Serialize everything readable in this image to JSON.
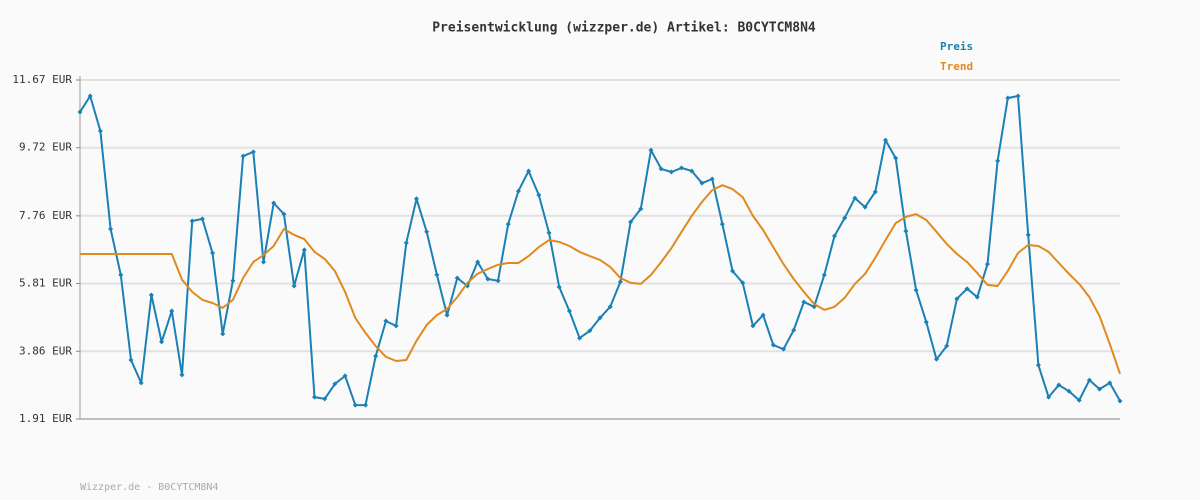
{
  "chart_data": {
    "type": "line",
    "title": "Preisentwicklung (wizzper.de) Artikel: B0CYTCM8N4",
    "footer": "Wizzper.de - B0CYTCM8N4",
    "ylim": [
      1.91,
      11.67
    ],
    "yticks": [
      {
        "value": 1.91,
        "label": "1.91 EUR"
      },
      {
        "value": 3.86,
        "label": "3.86 EUR"
      },
      {
        "value": 5.81,
        "label": "5.81 EUR"
      },
      {
        "value": 7.76,
        "label": "7.76 EUR"
      },
      {
        "value": 9.72,
        "label": "9.72 EUR"
      },
      {
        "value": 11.67,
        "label": "11.67 EUR"
      }
    ],
    "grid": true,
    "legend": "top-right",
    "series": [
      {
        "name": "Preis",
        "color": "#1a80b6",
        "markers": true,
        "values": [
          10.75,
          11.21,
          10.2,
          7.38,
          6.06,
          3.61,
          2.95,
          5.48,
          4.13,
          5.02,
          3.18,
          7.61,
          7.67,
          6.69,
          4.36,
          5.89,
          9.48,
          9.6,
          6.43,
          8.13,
          7.81,
          5.74,
          6.78,
          2.54,
          2.49,
          2.92,
          3.15,
          2.31,
          2.31,
          3.72,
          4.73,
          4.59,
          6.98,
          8.25,
          7.3,
          6.06,
          4.9,
          5.97,
          5.74,
          6.43,
          5.94,
          5.89,
          7.52,
          8.47,
          9.05,
          8.36,
          7.27,
          5.71,
          5.02,
          4.24,
          4.45,
          4.82,
          5.14,
          5.86,
          7.58,
          7.96,
          9.65,
          9.11,
          9.02,
          9.14,
          9.05,
          8.7,
          8.82,
          7.52,
          6.17,
          5.83,
          4.59,
          4.9,
          4.04,
          3.92,
          4.47,
          5.28,
          5.14,
          6.06,
          7.18,
          7.7,
          8.27,
          8.01,
          8.45,
          9.94,
          9.42,
          7.32,
          5.62,
          4.7,
          3.63,
          4.01,
          5.37,
          5.66,
          5.42,
          6.37,
          9.34,
          11.15,
          11.21,
          7.21,
          3.46,
          2.54,
          2.89,
          2.71,
          2.45,
          3.03,
          2.77,
          2.95,
          2.43
        ]
      },
      {
        "name": "Trend",
        "color": "#e08a1e",
        "markers": false,
        "values": [
          6.66,
          6.66,
          6.66,
          6.66,
          6.66,
          6.66,
          6.66,
          6.66,
          6.66,
          6.66,
          5.92,
          5.57,
          5.34,
          5.25,
          5.11,
          5.34,
          5.97,
          6.43,
          6.63,
          6.89,
          7.38,
          7.21,
          7.09,
          6.72,
          6.52,
          6.17,
          5.57,
          4.82,
          4.39,
          4.01,
          3.7,
          3.58,
          3.61,
          4.16,
          4.62,
          4.9,
          5.08,
          5.42,
          5.83,
          6.09,
          6.23,
          6.35,
          6.4,
          6.4,
          6.6,
          6.86,
          7.06,
          7.01,
          6.89,
          6.72,
          6.6,
          6.49,
          6.29,
          5.97,
          5.83,
          5.8,
          6.06,
          6.43,
          6.83,
          7.3,
          7.76,
          8.16,
          8.5,
          8.64,
          8.53,
          8.3,
          7.76,
          7.35,
          6.86,
          6.37,
          5.94,
          5.57,
          5.22,
          5.05,
          5.14,
          5.4,
          5.8,
          6.09,
          6.55,
          7.06,
          7.55,
          7.73,
          7.81,
          7.64,
          7.3,
          6.95,
          6.66,
          6.43,
          6.11,
          5.77,
          5.74,
          6.17,
          6.69,
          6.92,
          6.89,
          6.72,
          6.4,
          6.09,
          5.8,
          5.42,
          4.87,
          4.07,
          3.21
        ]
      }
    ]
  }
}
